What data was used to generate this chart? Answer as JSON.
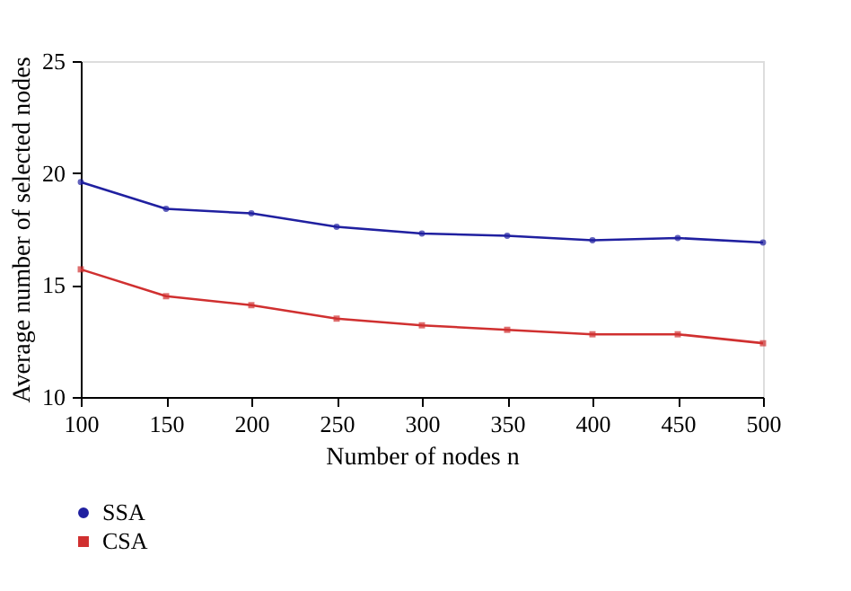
{
  "chart_data": {
    "type": "line",
    "xlabel": "Number of nodes n",
    "ylabel": "Average number of selected nodes",
    "x": [
      100,
      150,
      200,
      250,
      300,
      350,
      400,
      450,
      500
    ],
    "series": [
      {
        "name": "SSA",
        "color": "#2020a0",
        "marker": "circle",
        "values": [
          19.6,
          18.4,
          18.2,
          17.6,
          17.3,
          17.2,
          17.0,
          17.1,
          16.9
        ]
      },
      {
        "name": "CSA",
        "color": "#d03030",
        "marker": "square",
        "values": [
          15.7,
          14.5,
          14.1,
          13.5,
          13.2,
          13.0,
          12.8,
          12.8,
          12.4
        ]
      }
    ],
    "xlim": [
      100,
      500
    ],
    "xticks": [
      100,
      150,
      200,
      250,
      300,
      350,
      400,
      450,
      500
    ],
    "ylim": [
      10,
      25
    ],
    "yticks": [
      10,
      15,
      20,
      25
    ],
    "grid": false,
    "legend": "bottom left",
    "line_style": "solid"
  }
}
